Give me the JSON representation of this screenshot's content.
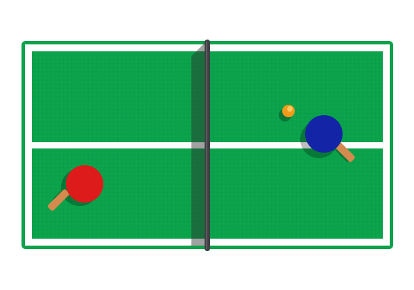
{
  "game": {
    "name": "Table Tennis",
    "view": "top-down"
  },
  "colors": {
    "background": "#ffffff",
    "table_surface": "#0aa24a",
    "table_lines": "#ffffff",
    "net_post": "#3f3f45",
    "net_shadow": "#2e2e2e",
    "red_paddle": "#dd1b1b",
    "blue_paddle": "#1424a6",
    "paddle_handle": "#d58a4e",
    "ball": "#f49a1a",
    "ball_highlight": "#ffc960"
  },
  "paddles": [
    {
      "name": "red-paddle",
      "color": "red",
      "side": "left"
    },
    {
      "name": "blue-paddle",
      "color": "blue",
      "side": "right"
    }
  ],
  "ball": {
    "name": "ping-pong-ball",
    "color": "orange"
  }
}
